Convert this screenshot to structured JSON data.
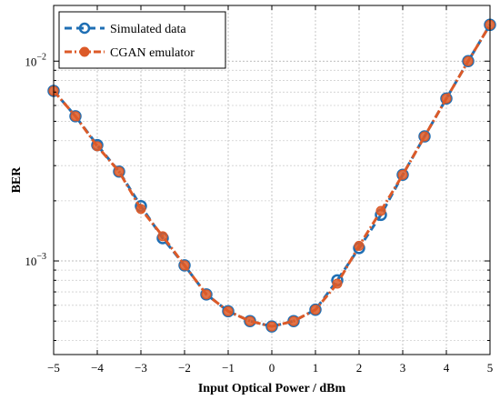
{
  "chart_data": {
    "type": "line",
    "title": "",
    "xlabel": "Input Optical Power / dBm",
    "ylabel": "BER",
    "xlim": [
      -5,
      5
    ],
    "ylim": [
      0.00034,
      0.019
    ],
    "yscale": "log",
    "grid": true,
    "legend_position": "top-left",
    "x_ticks": [
      -5,
      -4,
      -3,
      -2,
      -1,
      0,
      1,
      2,
      3,
      4,
      5
    ],
    "x_tick_labels": [
      "−5",
      "−4",
      "−3",
      "−2",
      "−1",
      "0",
      "1",
      "2",
      "3",
      "4",
      "5"
    ],
    "y_major_ticks": [
      0.001,
      0.01
    ],
    "y_tick_labels": [
      {
        "base": "10",
        "exp": "−3"
      },
      {
        "base": "10",
        "exp": "−2"
      }
    ],
    "x": [
      -5,
      -4.5,
      -4,
      -3.5,
      -3,
      -2.5,
      -2,
      -1.5,
      -1,
      -0.5,
      0,
      0.5,
      1,
      1.5,
      2,
      2.5,
      3,
      3.5,
      4,
      4.5,
      5
    ],
    "series": [
      {
        "name": "Simulated data",
        "color": "#1f6fb4",
        "line_style": "dashed",
        "marker": "open-circle",
        "values": [
          0.0071,
          0.0053,
          0.0038,
          0.0028,
          0.00188,
          0.0013,
          0.00095,
          0.00068,
          0.00056,
          0.0005,
          0.00047,
          0.0005,
          0.00057,
          0.0008,
          0.00116,
          0.0017,
          0.0027,
          0.0042,
          0.0065,
          0.01,
          0.0152
        ]
      },
      {
        "name": "CGAN emulator",
        "color": "#dc5a28",
        "line_style": "dash-dot",
        "marker": "filled-circle",
        "values": [
          0.0071,
          0.0053,
          0.00375,
          0.0028,
          0.00182,
          0.00133,
          0.00095,
          0.00068,
          0.00056,
          0.0005,
          0.00047,
          0.0005,
          0.00057,
          0.00077,
          0.00119,
          0.00178,
          0.0027,
          0.0042,
          0.0065,
          0.01,
          0.0152
        ]
      }
    ]
  }
}
